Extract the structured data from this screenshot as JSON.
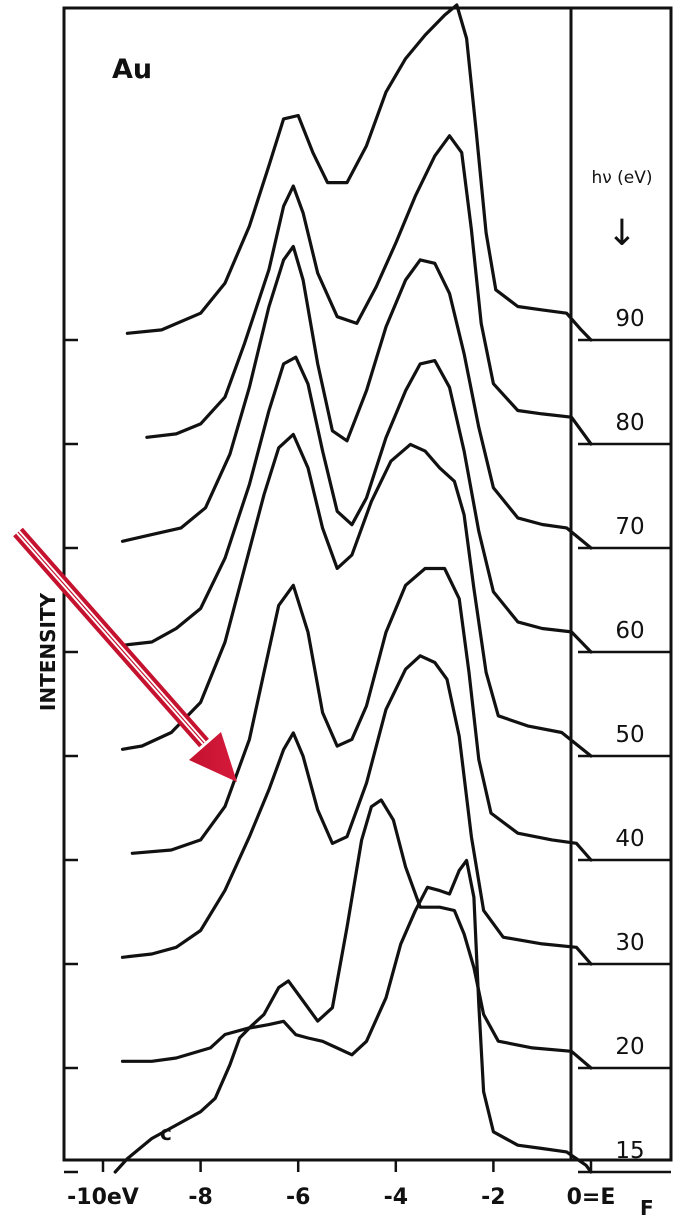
{
  "chart_data": {
    "type": "line",
    "title": "Au",
    "corner_label": "c",
    "xlabel": "",
    "ylabel": "INTENSITY",
    "xlim": [
      -10,
      0
    ],
    "x_ticks": [
      {
        "value": -10,
        "label": "-10eV"
      },
      {
        "value": -8,
        "label": "-8"
      },
      {
        "value": -6,
        "label": "-6"
      },
      {
        "value": -4,
        "label": "-4"
      },
      {
        "value": -2,
        "label": "-2"
      },
      {
        "value": 0,
        "label": "0=E"
      }
    ],
    "fermi_subscript": "F",
    "panel_header": "hν (eV)",
    "panel_arrow": "↓",
    "grid": false,
    "series": [
      {
        "name": "90",
        "points": [
          [
            -9.5,
            0.02
          ],
          [
            -8.8,
            0.03
          ],
          [
            -8.0,
            0.08
          ],
          [
            -7.5,
            0.17
          ],
          [
            -7.0,
            0.34
          ],
          [
            -6.6,
            0.52
          ],
          [
            -6.3,
            0.66
          ],
          [
            -6.0,
            0.67
          ],
          [
            -5.7,
            0.56
          ],
          [
            -5.4,
            0.47
          ],
          [
            -5.0,
            0.47
          ],
          [
            -4.6,
            0.58
          ],
          [
            -4.2,
            0.74
          ],
          [
            -3.8,
            0.84
          ],
          [
            -3.4,
            0.91
          ],
          [
            -3.0,
            0.97
          ],
          [
            -2.75,
            1.0
          ],
          [
            -2.55,
            0.9
          ],
          [
            -2.35,
            0.62
          ],
          [
            -2.15,
            0.32
          ],
          [
            -1.95,
            0.15
          ],
          [
            -1.5,
            0.1
          ],
          [
            -1.0,
            0.09
          ],
          [
            -0.5,
            0.08
          ],
          [
            -0.2,
            0.03
          ],
          [
            0,
            0.0
          ]
        ]
      },
      {
        "name": "80",
        "points": [
          [
            -9.1,
            0.02
          ],
          [
            -8.5,
            0.03
          ],
          [
            -8.0,
            0.06
          ],
          [
            -7.5,
            0.14
          ],
          [
            -7.1,
            0.3
          ],
          [
            -6.6,
            0.52
          ],
          [
            -6.3,
            0.71
          ],
          [
            -6.1,
            0.77
          ],
          [
            -5.9,
            0.69
          ],
          [
            -5.6,
            0.51
          ],
          [
            -5.2,
            0.38
          ],
          [
            -4.8,
            0.36
          ],
          [
            -4.4,
            0.47
          ],
          [
            -4.0,
            0.6
          ],
          [
            -3.6,
            0.74
          ],
          [
            -3.2,
            0.86
          ],
          [
            -2.9,
            0.92
          ],
          [
            -2.65,
            0.87
          ],
          [
            -2.45,
            0.64
          ],
          [
            -2.25,
            0.36
          ],
          [
            -2.0,
            0.18
          ],
          [
            -1.5,
            0.1
          ],
          [
            -1.0,
            0.09
          ],
          [
            -0.4,
            0.08
          ],
          [
            0,
            0.0
          ]
        ]
      },
      {
        "name": "70",
        "points": [
          [
            -9.6,
            0.02
          ],
          [
            -9.0,
            0.04
          ],
          [
            -8.4,
            0.06
          ],
          [
            -7.9,
            0.12
          ],
          [
            -7.4,
            0.28
          ],
          [
            -7.0,
            0.48
          ],
          [
            -6.6,
            0.72
          ],
          [
            -6.3,
            0.86
          ],
          [
            -6.1,
            0.9
          ],
          [
            -5.9,
            0.8
          ],
          [
            -5.6,
            0.55
          ],
          [
            -5.3,
            0.35
          ],
          [
            -5.0,
            0.32
          ],
          [
            -4.6,
            0.47
          ],
          [
            -4.2,
            0.66
          ],
          [
            -3.8,
            0.8
          ],
          [
            -3.5,
            0.86
          ],
          [
            -3.2,
            0.85
          ],
          [
            -2.9,
            0.76
          ],
          [
            -2.6,
            0.58
          ],
          [
            -2.3,
            0.36
          ],
          [
            -2.0,
            0.18
          ],
          [
            -1.5,
            0.09
          ],
          [
            -1.0,
            0.07
          ],
          [
            -0.5,
            0.06
          ],
          [
            0,
            0.0
          ]
        ]
      },
      {
        "name": "60",
        "points": [
          [
            -9.6,
            0.02
          ],
          [
            -9.0,
            0.03
          ],
          [
            -8.5,
            0.07
          ],
          [
            -8.0,
            0.13
          ],
          [
            -7.5,
            0.28
          ],
          [
            -7.0,
            0.5
          ],
          [
            -6.6,
            0.72
          ],
          [
            -6.3,
            0.86
          ],
          [
            -6.05,
            0.88
          ],
          [
            -5.8,
            0.8
          ],
          [
            -5.5,
            0.6
          ],
          [
            -5.2,
            0.42
          ],
          [
            -4.9,
            0.38
          ],
          [
            -4.6,
            0.46
          ],
          [
            -4.2,
            0.64
          ],
          [
            -3.8,
            0.78
          ],
          [
            -3.5,
            0.86
          ],
          [
            -3.2,
            0.87
          ],
          [
            -2.9,
            0.79
          ],
          [
            -2.6,
            0.6
          ],
          [
            -2.3,
            0.36
          ],
          [
            -2.0,
            0.18
          ],
          [
            -1.5,
            0.09
          ],
          [
            -1.0,
            0.07
          ],
          [
            -0.4,
            0.06
          ],
          [
            0,
            0.0
          ]
        ]
      },
      {
        "name": "50",
        "points": [
          [
            -9.6,
            0.02
          ],
          [
            -9.2,
            0.03
          ],
          [
            -8.6,
            0.07
          ],
          [
            -8.0,
            0.16
          ],
          [
            -7.5,
            0.34
          ],
          [
            -7.1,
            0.56
          ],
          [
            -6.7,
            0.78
          ],
          [
            -6.4,
            0.92
          ],
          [
            -6.1,
            0.96
          ],
          [
            -5.8,
            0.86
          ],
          [
            -5.5,
            0.68
          ],
          [
            -5.2,
            0.56
          ],
          [
            -4.9,
            0.6
          ],
          [
            -4.5,
            0.76
          ],
          [
            -4.1,
            0.88
          ],
          [
            -3.7,
            0.93
          ],
          [
            -3.4,
            0.91
          ],
          [
            -3.1,
            0.86
          ],
          [
            -2.8,
            0.82
          ],
          [
            -2.6,
            0.72
          ],
          [
            -2.4,
            0.5
          ],
          [
            -2.15,
            0.25
          ],
          [
            -1.9,
            0.12
          ],
          [
            -1.3,
            0.09
          ],
          [
            -0.6,
            0.07
          ],
          [
            0,
            0.0
          ]
        ]
      },
      {
        "name": "40",
        "points": [
          [
            -9.4,
            0.02
          ],
          [
            -8.6,
            0.03
          ],
          [
            -8.0,
            0.06
          ],
          [
            -7.5,
            0.16
          ],
          [
            -7.0,
            0.36
          ],
          [
            -6.7,
            0.56
          ],
          [
            -6.4,
            0.76
          ],
          [
            -6.1,
            0.82
          ],
          [
            -5.8,
            0.68
          ],
          [
            -5.5,
            0.44
          ],
          [
            -5.2,
            0.34
          ],
          [
            -4.9,
            0.36
          ],
          [
            -4.6,
            0.46
          ],
          [
            -4.2,
            0.68
          ],
          [
            -3.8,
            0.82
          ],
          [
            -3.4,
            0.87
          ],
          [
            -3.0,
            0.87
          ],
          [
            -2.7,
            0.78
          ],
          [
            -2.5,
            0.56
          ],
          [
            -2.3,
            0.3
          ],
          [
            -2.05,
            0.14
          ],
          [
            -1.5,
            0.08
          ],
          [
            -0.8,
            0.06
          ],
          [
            -0.3,
            0.05
          ],
          [
            0,
            0.0
          ]
        ]
      },
      {
        "name": "30",
        "points": [
          [
            -9.6,
            0.02
          ],
          [
            -9.0,
            0.03
          ],
          [
            -8.5,
            0.05
          ],
          [
            -8.0,
            0.1
          ],
          [
            -7.5,
            0.22
          ],
          [
            -7.0,
            0.38
          ],
          [
            -6.6,
            0.52
          ],
          [
            -6.3,
            0.64
          ],
          [
            -6.1,
            0.69
          ],
          [
            -5.9,
            0.62
          ],
          [
            -5.6,
            0.46
          ],
          [
            -5.3,
            0.36
          ],
          [
            -5.0,
            0.38
          ],
          [
            -4.6,
            0.54
          ],
          [
            -4.2,
            0.76
          ],
          [
            -3.8,
            0.88
          ],
          [
            -3.5,
            0.92
          ],
          [
            -3.2,
            0.9
          ],
          [
            -2.95,
            0.85
          ],
          [
            -2.7,
            0.68
          ],
          [
            -2.45,
            0.38
          ],
          [
            -2.2,
            0.16
          ],
          [
            -1.8,
            0.08
          ],
          [
            -1.0,
            0.06
          ],
          [
            -0.3,
            0.05
          ],
          [
            0,
            0.0
          ]
        ]
      },
      {
        "name": "20",
        "points": [
          [
            -9.6,
            0.02
          ],
          [
            -9.0,
            0.02
          ],
          [
            -8.5,
            0.03
          ],
          [
            -7.8,
            0.06
          ],
          [
            -7.5,
            0.1
          ],
          [
            -7.0,
            0.12
          ],
          [
            -6.7,
            0.16
          ],
          [
            -6.4,
            0.24
          ],
          [
            -6.2,
            0.26
          ],
          [
            -5.9,
            0.2
          ],
          [
            -5.6,
            0.14
          ],
          [
            -5.3,
            0.18
          ],
          [
            -5.0,
            0.42
          ],
          [
            -4.7,
            0.68
          ],
          [
            -4.5,
            0.78
          ],
          [
            -4.3,
            0.8
          ],
          [
            -4.05,
            0.74
          ],
          [
            -3.8,
            0.6
          ],
          [
            -3.5,
            0.48
          ],
          [
            -3.1,
            0.48
          ],
          [
            -2.8,
            0.47
          ],
          [
            -2.6,
            0.4
          ],
          [
            -2.4,
            0.3
          ],
          [
            -2.2,
            0.16
          ],
          [
            -1.9,
            0.08
          ],
          [
            -1.2,
            0.06
          ],
          [
            -0.4,
            0.05
          ],
          [
            0,
            0.0
          ]
        ]
      },
      {
        "name": "15",
        "points": [
          [
            -9.75,
            0.0
          ],
          [
            -9.5,
            0.04
          ],
          [
            -9.0,
            0.1
          ],
          [
            -8.5,
            0.14
          ],
          [
            -8.0,
            0.18
          ],
          [
            -7.7,
            0.22
          ],
          [
            -7.4,
            0.32
          ],
          [
            -7.2,
            0.4
          ],
          [
            -7.0,
            0.43
          ],
          [
            -6.6,
            0.44
          ],
          [
            -6.3,
            0.45
          ],
          [
            -6.05,
            0.41
          ],
          [
            -5.8,
            0.4
          ],
          [
            -5.5,
            0.39
          ],
          [
            -5.2,
            0.37
          ],
          [
            -4.9,
            0.35
          ],
          [
            -4.6,
            0.39
          ],
          [
            -4.2,
            0.52
          ],
          [
            -3.9,
            0.68
          ],
          [
            -3.6,
            0.78
          ],
          [
            -3.35,
            0.85
          ],
          [
            -3.1,
            0.84
          ],
          [
            -2.9,
            0.83
          ],
          [
            -2.7,
            0.9
          ],
          [
            -2.55,
            0.93
          ],
          [
            -2.4,
            0.82
          ],
          [
            -2.3,
            0.5
          ],
          [
            -2.2,
            0.24
          ],
          [
            -2.0,
            0.12
          ],
          [
            -1.5,
            0.08
          ],
          [
            -1.0,
            0.07
          ],
          [
            -0.5,
            0.06
          ],
          [
            -0.1,
            0.02
          ],
          [
            0,
            0.0
          ]
        ]
      }
    ]
  }
}
